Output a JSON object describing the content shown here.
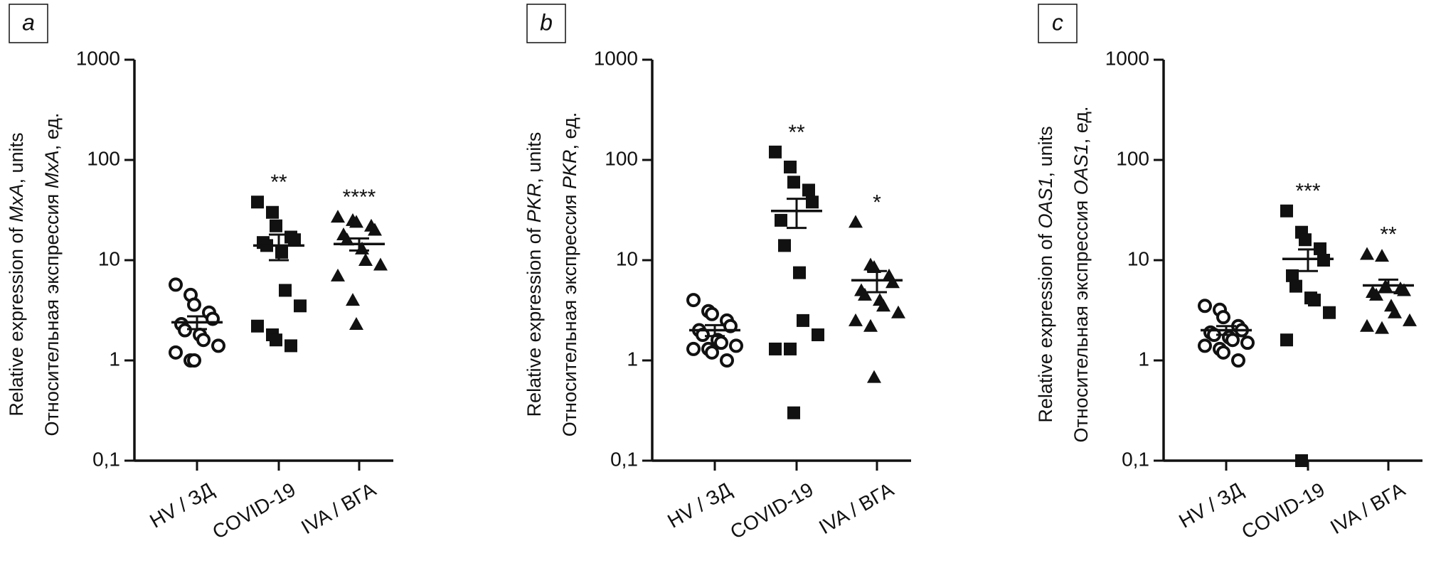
{
  "chart_data": [
    {
      "type": "scatter",
      "panel": "a",
      "log_y": true,
      "ylabel": [
        [
          "Relative expression of ",
          "MxA",
          ", units"
        ],
        [
          "Относительная экспрессия ",
          "MxA",
          ", ед."
        ]
      ],
      "ylim": [
        0.1,
        1000
      ],
      "yticks": [
        {
          "value": 0.1,
          "label": "0,1"
        },
        1,
        10,
        100,
        1000
      ],
      "categories": [
        "HV / ЗД",
        "COVID-19",
        "IVA / ВГА"
      ],
      "series": [
        {
          "name": "HV / ЗД",
          "marker": "circle",
          "color": "#111",
          "values": [
            5.7,
            4.5,
            3.6,
            3.0,
            2.6,
            2.3,
            2.0,
            1.8,
            1.6,
            1.4,
            1.2,
            1.0,
            1.0
          ],
          "mean": 2.4,
          "sem": 0.35
        },
        {
          "name": "COVID-19",
          "marker": "square",
          "color": "#111",
          "values": [
            38,
            30,
            22,
            17,
            16,
            15,
            14,
            12,
            5,
            3.5,
            2.2,
            1.8,
            1.6,
            1.4
          ],
          "mean": 14,
          "sem": 4,
          "annotation": "**"
        },
        {
          "name": "IVA / ВГА",
          "marker": "triangle",
          "color": "#111",
          "values": [
            27,
            25,
            24,
            22,
            20,
            18,
            16,
            13,
            10,
            9,
            7,
            4,
            2.3
          ],
          "mean": 14.5,
          "sem": 2,
          "annotation": "****"
        }
      ]
    },
    {
      "type": "scatter",
      "panel": "b",
      "log_y": true,
      "ylabel": [
        [
          "Relative expression of ",
          "PKR",
          ", units"
        ],
        [
          "Относительная экспрессия ",
          "PKR",
          ", ед."
        ]
      ],
      "ylim": [
        0.1,
        1000
      ],
      "yticks": [
        {
          "value": 0.1,
          "label": "0,1"
        },
        1,
        10,
        100,
        1000
      ],
      "categories": [
        "HV / ЗД",
        "COVID-19",
        "IVA / ВГА"
      ],
      "series": [
        {
          "name": "HV / ЗД",
          "marker": "circle",
          "color": "#111",
          "values": [
            4,
            3.1,
            2.9,
            2.5,
            2.2,
            2,
            1.8,
            1.6,
            1.5,
            1.4,
            1.3,
            1.3,
            1.2,
            1.0
          ],
          "mean": 2.0,
          "sem": 0.25
        },
        {
          "name": "COVID-19",
          "marker": "square",
          "color": "#111",
          "values": [
            120,
            85,
            60,
            50,
            38,
            25,
            14,
            7.5,
            2.5,
            1.8,
            1.3,
            1.3,
            0.3
          ],
          "mean": 31,
          "sem": 10,
          "annotation": "**"
        },
        {
          "name": "IVA / ВГА",
          "marker": "triangle",
          "color": "#111",
          "values": [
            24,
            9,
            8.5,
            7,
            6,
            5,
            4.5,
            4,
            3.5,
            3,
            2.5,
            2.2,
            0.68
          ],
          "mean": 6.3,
          "sem": 1.5,
          "annotation": "*"
        }
      ]
    },
    {
      "type": "scatter",
      "panel": "c",
      "log_y": true,
      "ylabel": [
        [
          "Relative expression of ",
          "OAS1",
          ", units"
        ],
        [
          "Относительная экспрессия ",
          "OAS1",
          ", ед."
        ]
      ],
      "ylim": [
        0.1,
        1000
      ],
      "yticks": [
        {
          "value": 0.1,
          "label": "0,1"
        },
        1,
        10,
        100,
        1000
      ],
      "categories": [
        "HV / ЗД",
        "COVID-19",
        "IVA / ВГА"
      ],
      "series": [
        {
          "name": "HV / ЗД",
          "marker": "circle",
          "color": "#111",
          "values": [
            3.5,
            3.2,
            2.7,
            2.2,
            2.0,
            1.9,
            1.8,
            1.7,
            1.6,
            1.5,
            1.4,
            1.3,
            1.2,
            1.0
          ],
          "mean": 2.0,
          "sem": 0.2
        },
        {
          "name": "COVID-19",
          "marker": "square",
          "color": "#111",
          "values": [
            31,
            19,
            16,
            13,
            10,
            7,
            5.5,
            4.2,
            4.0,
            3.0,
            1.6,
            0.1
          ],
          "mean": 10.3,
          "sem": 2.5,
          "annotation": "***"
        },
        {
          "name": "IVA / ВГА",
          "marker": "triangle",
          "color": "#111",
          "values": [
            11.5,
            11,
            5.5,
            5.2,
            5,
            4.8,
            4.5,
            3.5,
            3,
            2.5,
            2.2,
            2.1
          ],
          "mean": 5.6,
          "sem": 0.8,
          "annotation": "**"
        }
      ]
    }
  ]
}
